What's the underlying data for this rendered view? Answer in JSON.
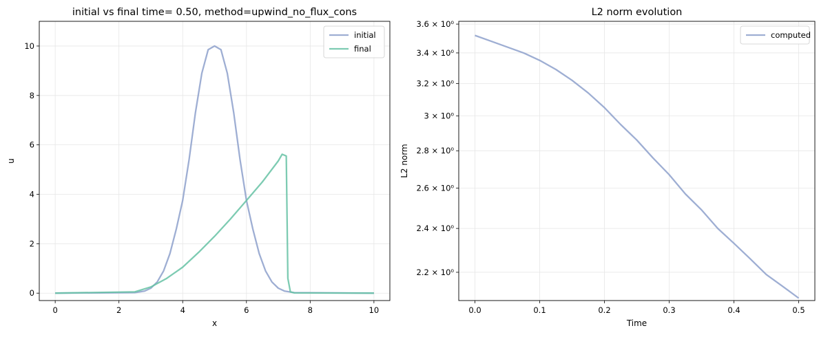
{
  "chart_data": [
    {
      "type": "line",
      "title": "initial vs final time= 0.50, method=upwind_no_flux_cons",
      "xlabel": "x",
      "ylabel": "u",
      "xlim": [
        -0.5,
        10.5
      ],
      "ylim": [
        -0.3,
        11.0
      ],
      "xticks": [
        0,
        2,
        4,
        6,
        8,
        10
      ],
      "xtick_labels": [
        "0",
        "2",
        "4",
        "6",
        "8",
        "10"
      ],
      "yticks": [
        0,
        2,
        4,
        6,
        8,
        10
      ],
      "ytick_labels": [
        "0",
        "2",
        "4",
        "6",
        "8",
        "10"
      ],
      "grid": true,
      "legend_position": "top-right",
      "series": [
        {
          "name": "initial",
          "color": "#8da0cb",
          "x": [
            0,
            2.5,
            2.8,
            3.0,
            3.2,
            3.4,
            3.6,
            3.8,
            4.0,
            4.2,
            4.4,
            4.6,
            4.8,
            5.0,
            5.2,
            5.4,
            5.6,
            5.8,
            6.0,
            6.2,
            6.4,
            6.6,
            6.8,
            7.0,
            7.2,
            7.5,
            10
          ],
          "y": [
            0,
            0.02,
            0.08,
            0.2,
            0.45,
            0.9,
            1.6,
            2.6,
            3.75,
            5.4,
            7.3,
            8.9,
            9.85,
            10.0,
            9.85,
            8.9,
            7.3,
            5.4,
            3.75,
            2.6,
            1.6,
            0.9,
            0.45,
            0.2,
            0.08,
            0.02,
            0
          ]
        },
        {
          "name": "final",
          "color": "#66c2a5",
          "x": [
            0,
            2.5,
            3.0,
            3.5,
            4.0,
            4.5,
            5.0,
            5.5,
            6.0,
            6.5,
            7.0,
            7.12,
            7.25,
            7.3,
            7.38,
            7.5,
            10
          ],
          "y": [
            0,
            0.05,
            0.25,
            0.6,
            1.05,
            1.65,
            2.3,
            3.0,
            3.75,
            4.5,
            5.35,
            5.62,
            5.55,
            0.6,
            0.05,
            0.01,
            0
          ]
        }
      ]
    },
    {
      "type": "line",
      "title": "L2 norm evolution",
      "xlabel": "Time",
      "ylabel": "L2 norm",
      "xlim": [
        -0.025,
        0.525
      ],
      "ylim": [
        2.08,
        3.62
      ],
      "yscale": "log",
      "xticks": [
        0.0,
        0.1,
        0.2,
        0.3,
        0.4,
        0.5
      ],
      "xtick_labels": [
        "0.0",
        "0.1",
        "0.2",
        "0.3",
        "0.4",
        "0.5"
      ],
      "yticks": [
        2.2,
        2.4,
        2.6,
        2.8,
        3.0,
        3.2,
        3.4,
        3.6
      ],
      "ytick_labels": [
        "2.2 × 10⁰",
        "2.4 × 10⁰",
        "2.6 × 10⁰",
        "2.8 × 10⁰",
        "3 × 10⁰",
        "3.2 × 10⁰",
        "3.4 × 10⁰",
        "3.6 × 10⁰"
      ],
      "grid": true,
      "legend_position": "top-right",
      "series": [
        {
          "name": "computed",
          "color": "#8da0cb",
          "x": [
            0.0,
            0.025,
            0.05,
            0.075,
            0.1,
            0.125,
            0.15,
            0.175,
            0.2,
            0.225,
            0.25,
            0.275,
            0.3,
            0.325,
            0.35,
            0.375,
            0.4,
            0.425,
            0.45,
            0.475,
            0.5
          ],
          "y": [
            3.52,
            3.48,
            3.44,
            3.4,
            3.35,
            3.29,
            3.22,
            3.14,
            3.05,
            2.95,
            2.86,
            2.76,
            2.67,
            2.57,
            2.49,
            2.4,
            2.33,
            2.26,
            2.19,
            2.14,
            2.09
          ]
        }
      ]
    }
  ]
}
